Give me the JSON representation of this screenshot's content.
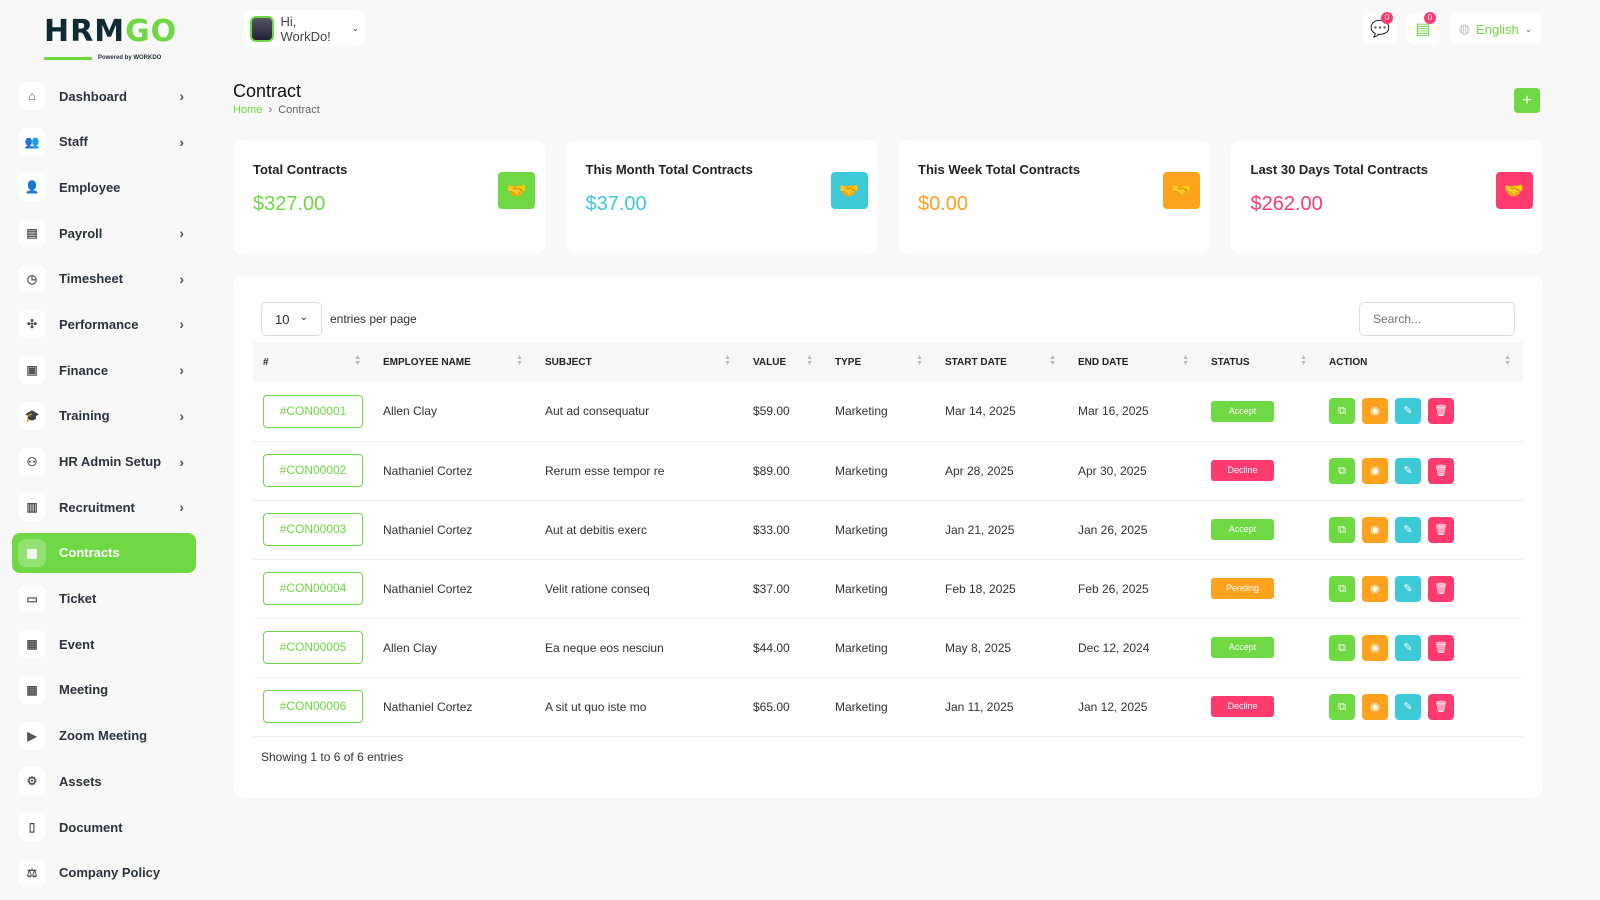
{
  "brand": {
    "logo_text": "HRMGO",
    "powered": "Powered by WORKDO"
  },
  "header": {
    "greeting": "Hi, WorkDo!",
    "messages_count": "0",
    "notifications_count": "0",
    "language": "English"
  },
  "sidebar": {
    "items": [
      {
        "label": "Dashboard",
        "icon": "home-icon",
        "glyph": "⌂",
        "chevron": true
      },
      {
        "label": "Staff",
        "icon": "users-icon",
        "glyph": "👥",
        "chevron": true
      },
      {
        "label": "Employee",
        "icon": "user-icon",
        "glyph": "👤",
        "chevron": false
      },
      {
        "label": "Payroll",
        "icon": "receipt-icon",
        "glyph": "▤",
        "chevron": true
      },
      {
        "label": "Timesheet",
        "icon": "clock-icon",
        "glyph": "◷",
        "chevron": true
      },
      {
        "label": "Performance",
        "icon": "performance-icon",
        "glyph": "✣",
        "chevron": true
      },
      {
        "label": "Finance",
        "icon": "wallet-icon",
        "glyph": "▣",
        "chevron": true
      },
      {
        "label": "Training",
        "icon": "school-icon",
        "glyph": "🎓",
        "chevron": true
      },
      {
        "label": "HR Admin Setup",
        "icon": "user-plus-icon",
        "glyph": "⚇",
        "chevron": true
      },
      {
        "label": "Recruitment",
        "icon": "clipboard-icon",
        "glyph": "▥",
        "chevron": true
      },
      {
        "label": "Contracts",
        "icon": "contract-icon",
        "glyph": "▦",
        "chevron": false,
        "active": true
      },
      {
        "label": "Ticket",
        "icon": "ticket-icon",
        "glyph": "▭",
        "chevron": false
      },
      {
        "label": "Event",
        "icon": "calendar-icon",
        "glyph": "▦",
        "chevron": false
      },
      {
        "label": "Meeting",
        "icon": "calendar-time-icon",
        "glyph": "▦",
        "chevron": false
      },
      {
        "label": "Zoom Meeting",
        "icon": "video-icon",
        "glyph": "▶",
        "chevron": false
      },
      {
        "label": "Assets",
        "icon": "gear-icon",
        "glyph": "⚙",
        "chevron": false
      },
      {
        "label": "Document",
        "icon": "file-icon",
        "glyph": "▯",
        "chevron": false
      },
      {
        "label": "Company Policy",
        "icon": "policy-icon",
        "glyph": "⚖",
        "chevron": false
      }
    ]
  },
  "page": {
    "title": "Contract",
    "breadcrumb": [
      "Home",
      "Contract"
    ]
  },
  "colors": {
    "green": "#6fd943",
    "cyan": "#3ec9d6",
    "orange": "#ffa21d",
    "red": "#ff3a6e"
  },
  "cards": [
    {
      "label": "Total Contracts",
      "value": "$327.00",
      "color": "#6fd943",
      "icon": "handshake-icon"
    },
    {
      "label": "This Month Total Contracts",
      "value": "$37.00",
      "color": "#3ec9d6",
      "icon": "handshake-icon"
    },
    {
      "label": "This Week Total Contracts",
      "value": "$0.00",
      "color": "#ffa21d",
      "icon": "handshake-icon"
    },
    {
      "label": "Last 30 Days Total Contracts",
      "value": "$262.00",
      "color": "#ff3a6e",
      "icon": "handshake-icon"
    }
  ],
  "table": {
    "entries_value": "10",
    "entries_label": "entries per page",
    "search_placeholder": "Search...",
    "columns": [
      "#",
      "EMPLOYEE NAME",
      "SUBJECT",
      "VALUE",
      "TYPE",
      "START DATE",
      "END DATE",
      "STATUS",
      "ACTION"
    ],
    "rows": [
      {
        "id": "#CON00001",
        "employee": "Allen Clay",
        "subject": "Aut ad consequatur",
        "value": "$59.00",
        "type": "Marketing",
        "start": "Mar 14, 2025",
        "end": "Mar 16, 2025",
        "status": "Accept"
      },
      {
        "id": "#CON00002",
        "employee": "Nathaniel Cortez",
        "subject": "Rerum esse tempor re",
        "value": "$89.00",
        "type": "Marketing",
        "start": "Apr 28, 2025",
        "end": "Apr 30, 2025",
        "status": "Decline"
      },
      {
        "id": "#CON00003",
        "employee": "Nathaniel Cortez",
        "subject": "Aut at debitis exerc",
        "value": "$33.00",
        "type": "Marketing",
        "start": "Jan 21, 2025",
        "end": "Jan 26, 2025",
        "status": "Accept"
      },
      {
        "id": "#CON00004",
        "employee": "Nathaniel Cortez",
        "subject": "Velit ratione conseq",
        "value": "$37.00",
        "type": "Marketing",
        "start": "Feb 18, 2025",
        "end": "Feb 26, 2025",
        "status": "Pending"
      },
      {
        "id": "#CON00005",
        "employee": "Allen Clay",
        "subject": "Ea neque eos nesciun",
        "value": "$44.00",
        "type": "Marketing",
        "start": "May 8, 2025",
        "end": "Dec 12, 2024",
        "status": "Accept"
      },
      {
        "id": "#CON00006",
        "employee": "Nathaniel Cortez",
        "subject": "A sit ut quo iste mo",
        "value": "$65.00",
        "type": "Marketing",
        "start": "Jan 11, 2025",
        "end": "Jan 12, 2025",
        "status": "Decline"
      }
    ],
    "footer": "Showing 1 to 6 of 6 entries"
  }
}
